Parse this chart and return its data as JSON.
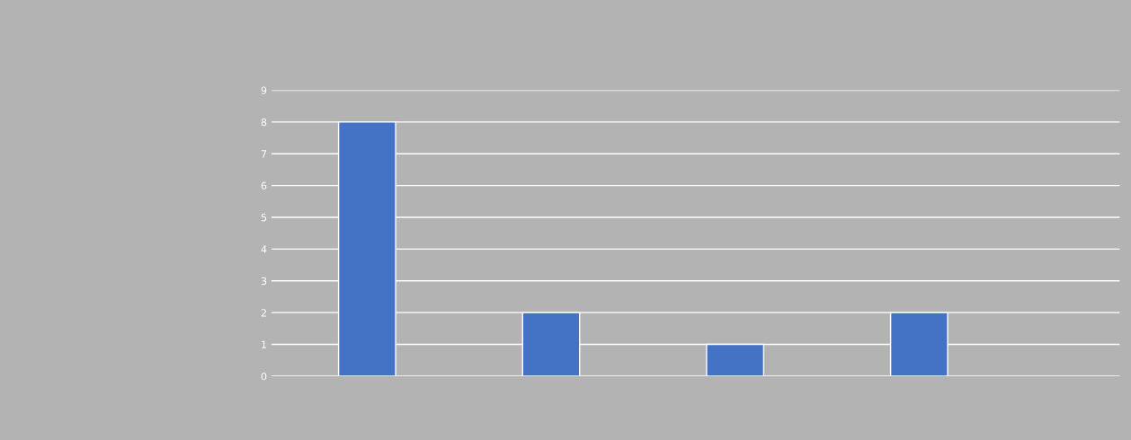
{
  "chart_data": {
    "type": "bar",
    "categories": [
      null,
      null,
      null,
      null
    ],
    "values": [
      8,
      2,
      1,
      2
    ],
    "color": "#4472c4",
    "ylim": [
      0,
      9
    ],
    "yticks": [
      0,
      1,
      2,
      3,
      4,
      5,
      6,
      7,
      8,
      9
    ],
    "grid": "y",
    "legend": false
  }
}
